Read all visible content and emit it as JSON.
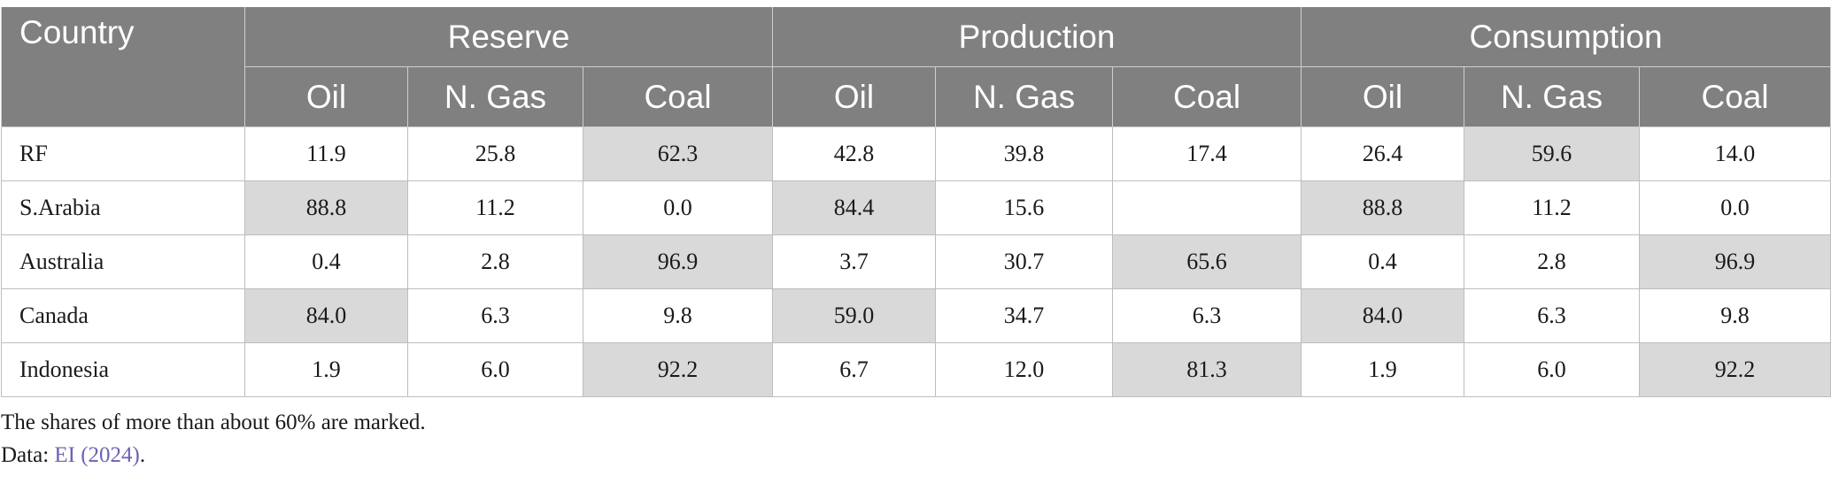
{
  "header": {
    "country": "Country",
    "groups": [
      "Reserve",
      "Production",
      "Consumption"
    ],
    "subcolumns": [
      "Oil",
      "N. Gas",
      "Coal",
      "Oil",
      "N. Gas",
      "Coal",
      "Oil",
      "N. Gas",
      "Coal"
    ]
  },
  "rows": [
    {
      "country": "RF",
      "values": [
        "11.9",
        "25.8",
        "62.3",
        "42.8",
        "39.8",
        "17.4",
        "26.4",
        "59.6",
        "14.0"
      ],
      "marked": [
        false,
        false,
        true,
        false,
        false,
        false,
        false,
        true,
        false
      ]
    },
    {
      "country": "S.Arabia",
      "values": [
        "88.8",
        "11.2",
        "0.0",
        "84.4",
        "15.6",
        "",
        "88.8",
        "11.2",
        "0.0"
      ],
      "marked": [
        true,
        false,
        false,
        true,
        false,
        false,
        true,
        false,
        false
      ]
    },
    {
      "country": "Australia",
      "values": [
        "0.4",
        "2.8",
        "96.9",
        "3.7",
        "30.7",
        "65.6",
        "0.4",
        "2.8",
        "96.9"
      ],
      "marked": [
        false,
        false,
        true,
        false,
        false,
        true,
        false,
        false,
        true
      ]
    },
    {
      "country": "Canada",
      "values": [
        "84.0",
        "6.3",
        "9.8",
        "59.0",
        "34.7",
        "6.3",
        "84.0",
        "6.3",
        "9.8"
      ],
      "marked": [
        true,
        false,
        false,
        true,
        false,
        false,
        true,
        false,
        false
      ]
    },
    {
      "country": "Indonesia",
      "values": [
        "1.9",
        "6.0",
        "92.2",
        "6.7",
        "12.0",
        "81.3",
        "1.9",
        "6.0",
        "92.2"
      ],
      "marked": [
        false,
        false,
        true,
        false,
        false,
        true,
        false,
        false,
        true
      ]
    }
  ],
  "notes": {
    "line1": "The shares of more than about 60% are marked.",
    "line2_prefix": "Data: ",
    "line2_link": "EI (2024)",
    "line2_suffix": "."
  },
  "colors": {
    "header_bg": "#7f807f",
    "marked_bg": "#d9d9d9",
    "link": "#6b62b5"
  }
}
